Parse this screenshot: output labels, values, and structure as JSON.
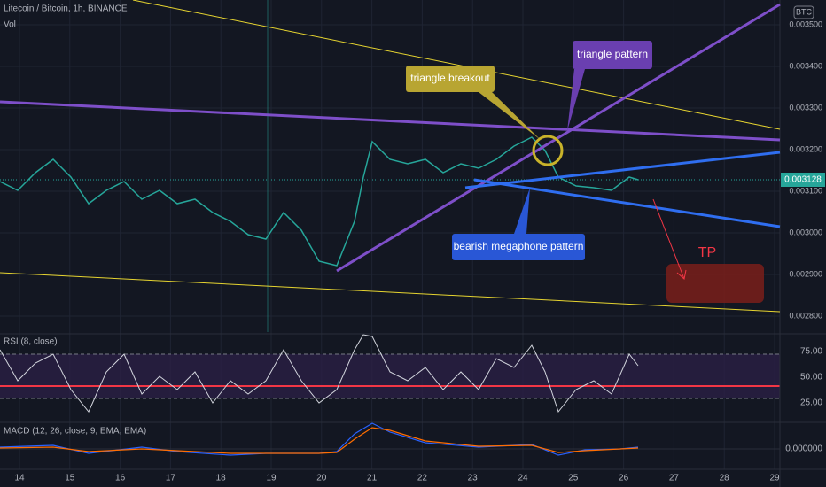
{
  "header": {
    "symbol": "Litecoin / Bitcoin, 1h, BINANCE",
    "volume": "Vol",
    "currency": "BTC"
  },
  "price_axis": [
    "0.003500",
    "0.003400",
    "0.003300",
    "0.003200",
    "0.003100",
    "0.003000",
    "0.002900",
    "0.002800"
  ],
  "current_price": "0.003128",
  "time_axis": [
    "14",
    "15",
    "16",
    "17",
    "18",
    "19",
    "20",
    "21",
    "22",
    "23",
    "24",
    "25",
    "26",
    "27",
    "28",
    "29"
  ],
  "rsi": {
    "title": "RSI (8, close)",
    "levels": [
      "75.00",
      "50.00",
      "25.00"
    ]
  },
  "macd": {
    "title": "MACD (12, 26, close, 9, EMA, EMA)",
    "level": "0.000000"
  },
  "annotations": {
    "breakout": "triangle breakout",
    "triangle": "triangle pattern",
    "megaphone": "bearish megaphone pattern",
    "target": "TP"
  }
}
